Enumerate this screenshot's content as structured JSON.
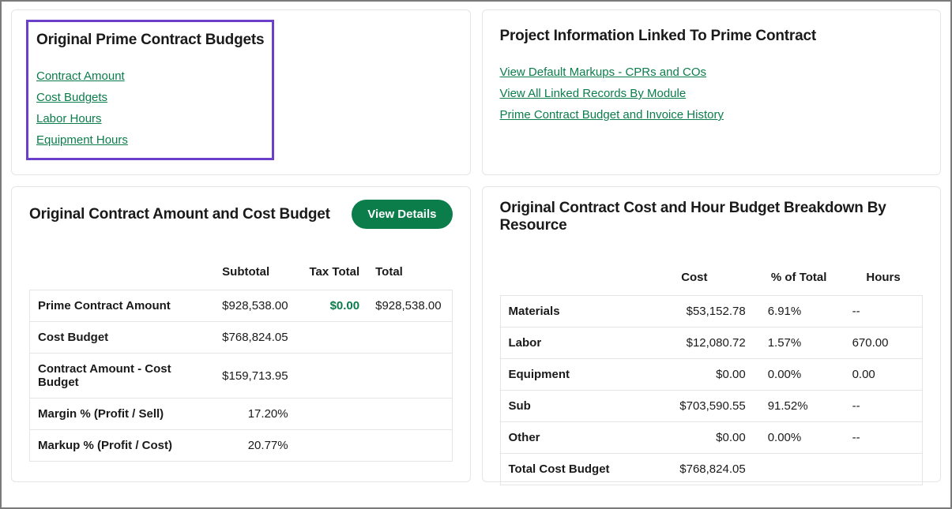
{
  "colors": {
    "accent_green": "#0b7d4b",
    "highlight_border": "#6b3fc9",
    "card_border": "#e5e5e5",
    "frame_border": "#7a7a7a",
    "text": "#1a1a1a",
    "background": "#ffffff"
  },
  "cards": {
    "budgets": {
      "title": "Original Prime Contract Budgets",
      "links": [
        "Contract Amount",
        "Cost Budgets",
        "Labor Hours",
        "Equipment Hours"
      ]
    },
    "project_info": {
      "title": "Project Information Linked To Prime Contract",
      "links": [
        "View Default Markups - CPRs and COs",
        "View All Linked Records By Module",
        "Prime Contract Budget and Invoice History"
      ]
    },
    "amount_budget": {
      "title": "Original Contract Amount and Cost Budget",
      "button": "View Details",
      "columns": [
        "",
        "Subtotal",
        "Tax Total",
        "Total"
      ],
      "rows": [
        {
          "label": "Prime Contract Amount",
          "subtotal": "$928,538.00",
          "tax": "$0.00",
          "total": "$928,538.00",
          "tax_green": true
        },
        {
          "label": "Cost Budget",
          "subtotal": "$768,824.05",
          "tax": "",
          "total": ""
        },
        {
          "label": "Contract Amount - Cost Budget",
          "subtotal": "$159,713.95",
          "tax": "",
          "total": ""
        },
        {
          "label": "Margin % (Profit / Sell)",
          "subtotal": "17.20%",
          "tax": "",
          "total": ""
        },
        {
          "label": "Markup % (Profit / Cost)",
          "subtotal": "20.77%",
          "tax": "",
          "total": ""
        }
      ]
    },
    "breakdown": {
      "title": "Original Contract Cost and Hour Budget Breakdown By Resource",
      "columns": [
        "",
        "Cost",
        "% of Total",
        "Hours"
      ],
      "rows": [
        {
          "label": "Materials",
          "cost": "$53,152.78",
          "pct": "6.91%",
          "hours": "--"
        },
        {
          "label": "Labor",
          "cost": "$12,080.72",
          "pct": "1.57%",
          "hours": "670.00"
        },
        {
          "label": "Equipment",
          "cost": "$0.00",
          "pct": "0.00%",
          "hours": "0.00"
        },
        {
          "label": "Sub",
          "cost": "$703,590.55",
          "pct": "91.52%",
          "hours": "--"
        },
        {
          "label": "Other",
          "cost": "$0.00",
          "pct": "0.00%",
          "hours": "--"
        },
        {
          "label": "Total Cost Budget",
          "cost": "$768,824.05",
          "pct": "",
          "hours": ""
        }
      ]
    }
  }
}
